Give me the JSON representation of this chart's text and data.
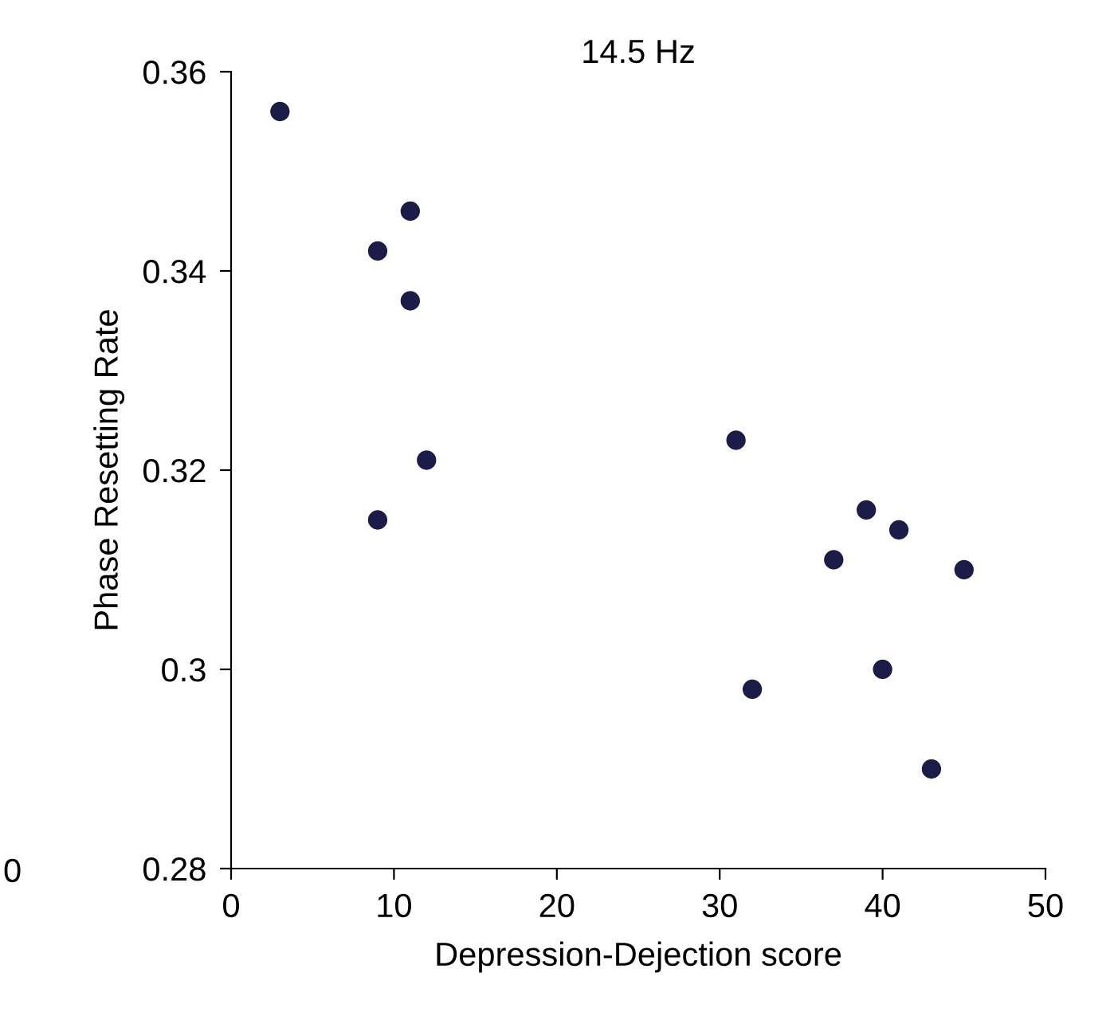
{
  "chart_data": {
    "type": "scatter",
    "title": "14.5 Hz",
    "xlabel": "Depression-Dejection score",
    "ylabel": "Phase Resetting Rate",
    "x": [
      3,
      11,
      9,
      11,
      12,
      9,
      31,
      39,
      41,
      37,
      45,
      40,
      32,
      43
    ],
    "series": [
      {
        "color": "#1c1c48",
        "values": [
          0.356,
          0.346,
          0.342,
          0.337,
          0.321,
          0.315,
          0.323,
          0.316,
          0.314,
          0.311,
          0.31,
          0.3,
          0.298,
          0.29
        ]
      }
    ],
    "xlim": [
      0,
      50
    ],
    "xticks": [
      0,
      10,
      20,
      30,
      40,
      50
    ],
    "ylim": [
      0.28,
      0.36
    ],
    "yticks": [
      0.28,
      0.3,
      0.32,
      0.34,
      0.36
    ],
    "marker": "circle",
    "grid": false,
    "legend": false,
    "annotations": [
      "0"
    ]
  }
}
